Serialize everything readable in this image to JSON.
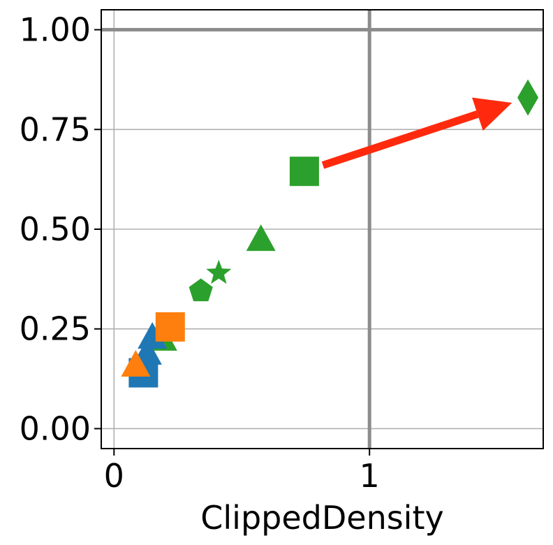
{
  "chart_data": {
    "type": "scatter",
    "title": "",
    "xlabel": "ClippedDensity",
    "ylabel": "",
    "xlim": [
      -0.05,
      1.68
    ],
    "ylim": [
      -0.05,
      1.05
    ],
    "xticks": [
      0,
      1
    ],
    "xtick_labels": [
      "0",
      "1"
    ],
    "yticks": [
      0.0,
      0.25,
      0.5,
      0.75,
      1.0
    ],
    "ytick_labels": [
      "0.00",
      "0.25",
      "0.50",
      "0.75",
      "1.00"
    ],
    "grid": true,
    "reference_lines": {
      "x": 1,
      "y": 1
    },
    "points": [
      {
        "x": 0.19,
        "y": 0.22,
        "color": "#2ca02c",
        "marker": "triangle"
      },
      {
        "x": 0.34,
        "y": 0.345,
        "color": "#2ca02c",
        "marker": "pentagon"
      },
      {
        "x": 0.41,
        "y": 0.39,
        "color": "#2ca02c",
        "marker": "star"
      },
      {
        "x": 0.575,
        "y": 0.47,
        "color": "#2ca02c",
        "marker": "triangle"
      },
      {
        "x": 0.745,
        "y": 0.645,
        "color": "#2ca02c",
        "marker": "square"
      },
      {
        "x": 1.62,
        "y": 0.83,
        "color": "#2ca02c",
        "marker": "diamond"
      },
      {
        "x": 0.115,
        "y": 0.14,
        "color": "#1f77b4",
        "marker": "square"
      },
      {
        "x": 0.13,
        "y": 0.185,
        "color": "#1f77b4",
        "marker": "triangle"
      },
      {
        "x": 0.15,
        "y": 0.225,
        "color": "#1f77b4",
        "marker": "triangle"
      },
      {
        "x": 0.22,
        "y": 0.255,
        "color": "#ff7f0e",
        "marker": "square"
      },
      {
        "x": 0.085,
        "y": 0.155,
        "color": "#ff7f0e",
        "marker": "triangle"
      }
    ],
    "arrow": {
      "from": {
        "x": 0.745,
        "y": 0.645
      },
      "to": {
        "x": 1.62,
        "y": 0.83
      },
      "color": "#ff2a0d"
    }
  }
}
